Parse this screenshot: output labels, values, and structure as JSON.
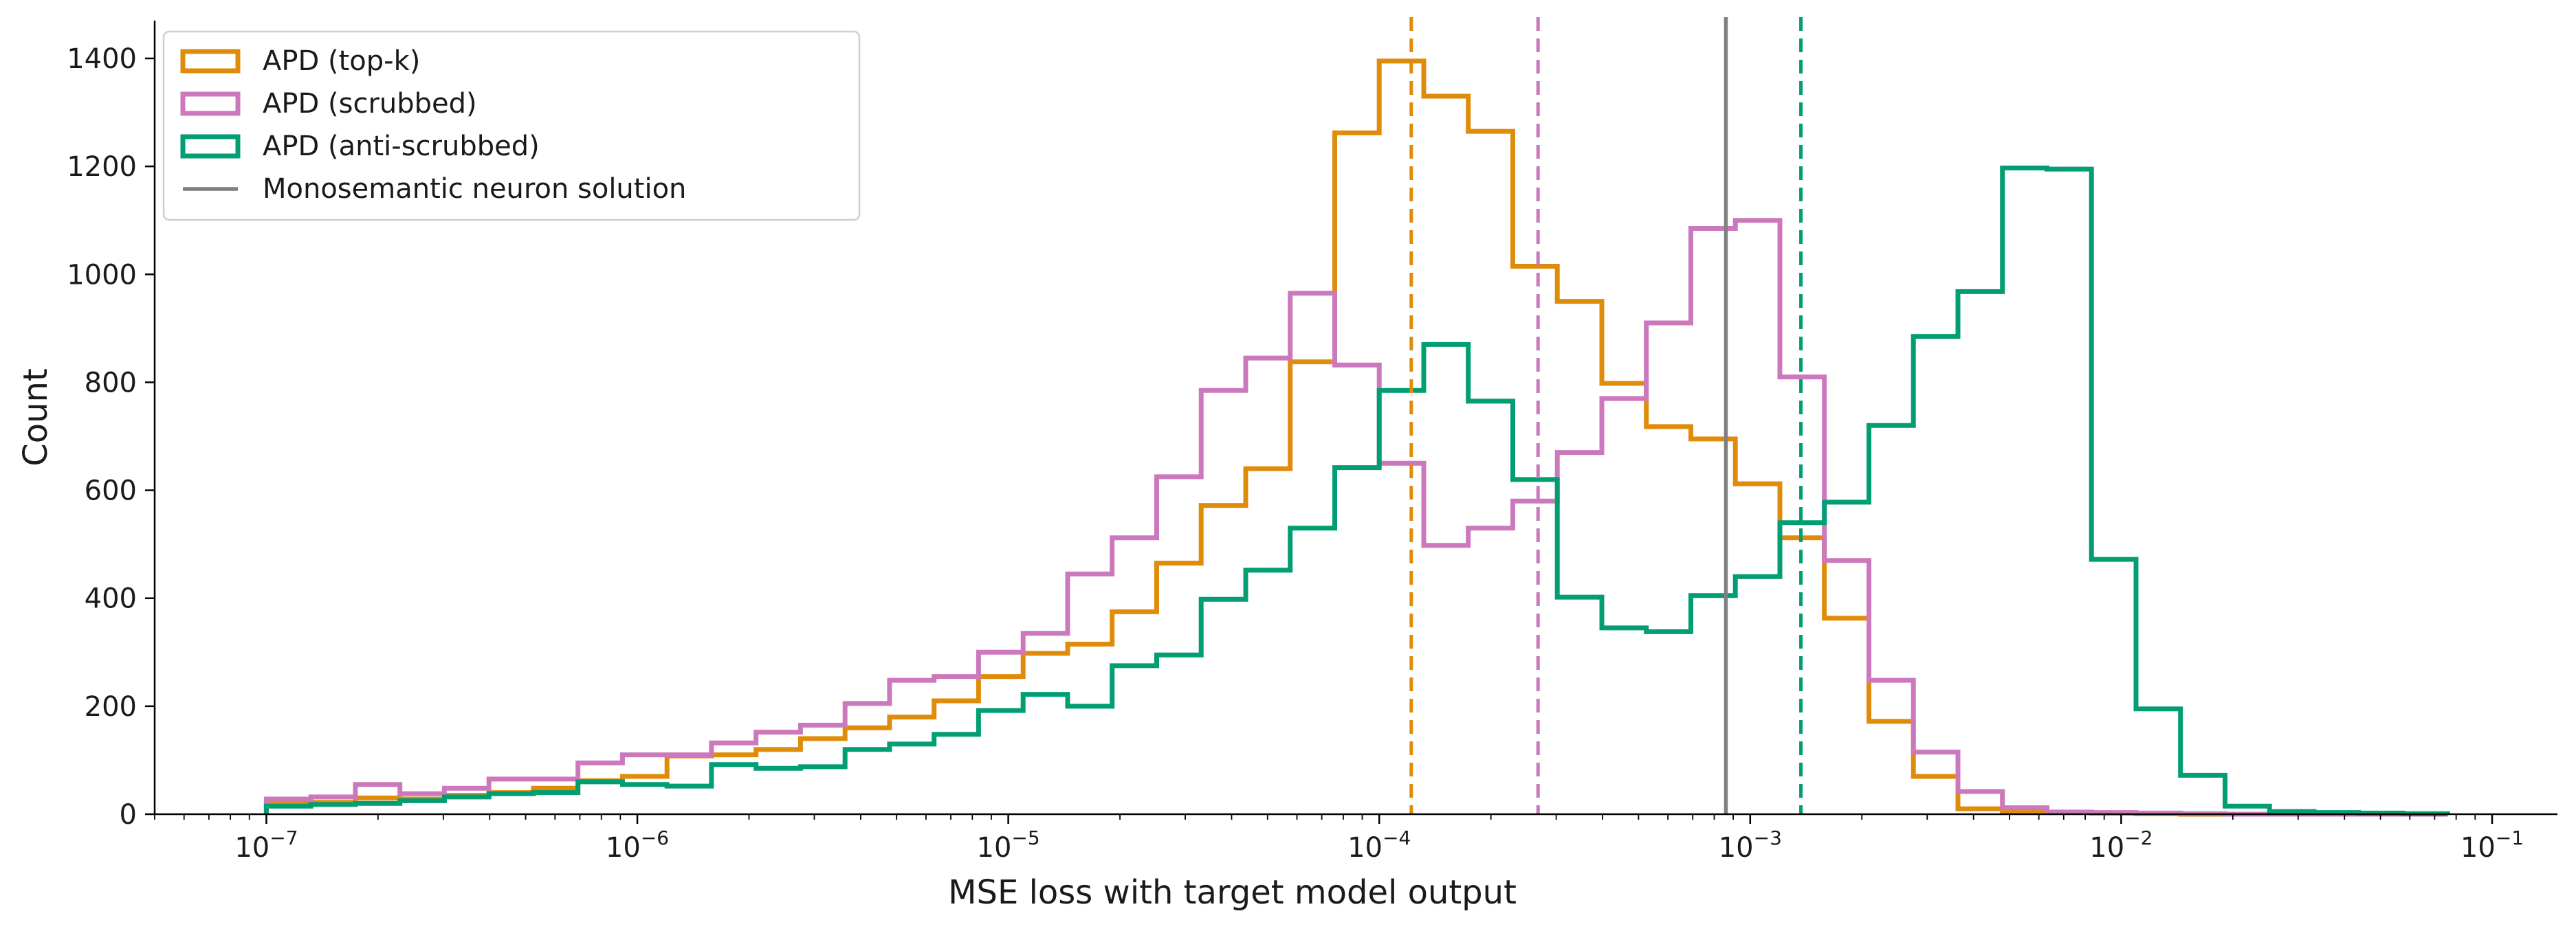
{
  "chart_data": {
    "type": "histogram",
    "xlabel": "MSE loss with target model output",
    "ylabel": "Count",
    "xscale": "log",
    "xlim": [
      5e-08,
      0.15
    ],
    "ylim": [
      0,
      1470
    ],
    "yticks": [
      0,
      200,
      400,
      600,
      800,
      1000,
      1200,
      1400
    ],
    "xticks": [
      {
        "value": 1e-07,
        "base": "10",
        "exp": "−7"
      },
      {
        "value": 1e-06,
        "base": "10",
        "exp": "−6"
      },
      {
        "value": 1e-05,
        "base": "10",
        "exp": "−5"
      },
      {
        "value": 0.0001,
        "base": "10",
        "exp": "−4"
      },
      {
        "value": 0.001,
        "base": "10",
        "exp": "−3"
      },
      {
        "value": 0.01,
        "base": "10",
        "exp": "−2"
      },
      {
        "value": 0.1,
        "base": "10",
        "exp": "−1"
      }
    ],
    "grid": false,
    "legend_position": "top-left",
    "bin_edges_log10": [
      -7.0,
      -6.88,
      -6.76,
      -6.64,
      -6.52,
      -6.4,
      -6.28,
      -6.16,
      -6.04,
      -5.92,
      -5.8,
      -5.68,
      -5.56,
      -5.44,
      -5.32,
      -5.2,
      -5.08,
      -4.96,
      -4.84,
      -4.72,
      -4.6,
      -4.48,
      -4.36,
      -4.24,
      -4.12,
      -4.0,
      -3.88,
      -3.76,
      -3.64,
      -3.52,
      -3.4,
      -3.28,
      -3.16,
      -3.04,
      -2.92,
      -2.8,
      -2.68,
      -2.56,
      -2.44,
      -2.32,
      -2.2,
      -2.08,
      -1.96,
      -1.84,
      -1.72,
      -1.6,
      -1.48,
      -1.36,
      -1.24,
      -1.12
    ],
    "series": [
      {
        "name": "APD (top-k)",
        "color": "#e08c0b",
        "legend_marker": "box",
        "values": [
          20,
          22,
          30,
          28,
          35,
          40,
          48,
          62,
          70,
          108,
          110,
          120,
          140,
          160,
          180,
          210,
          255,
          298,
          315,
          375,
          465,
          572,
          640,
          838,
          1262,
          1395,
          1330,
          1265,
          1015,
          950,
          798,
          718,
          695,
          612,
          512,
          363,
          172,
          70,
          10,
          4,
          3,
          2,
          1,
          0,
          0,
          0,
          0,
          0,
          0
        ]
      },
      {
        "name": "APD (scrubbed)",
        "color": "#cc78bc",
        "legend_marker": "box",
        "values": [
          28,
          32,
          55,
          38,
          48,
          65,
          65,
          95,
          110,
          110,
          132,
          152,
          165,
          205,
          248,
          255,
          300,
          335,
          445,
          512,
          625,
          785,
          845,
          965,
          832,
          650,
          498,
          530,
          580,
          670,
          770,
          910,
          1085,
          1100,
          810,
          470,
          248,
          115,
          42,
          12,
          4,
          3,
          2,
          1,
          0,
          0,
          0,
          0,
          0
        ]
      },
      {
        "name": "APD (anti-scrubbed)",
        "color": "#029e73",
        "legend_marker": "box",
        "values": [
          15,
          18,
          20,
          25,
          32,
          38,
          40,
          60,
          55,
          52,
          92,
          85,
          88,
          120,
          130,
          148,
          192,
          222,
          200,
          275,
          295,
          398,
          452,
          530,
          642,
          785,
          870,
          765,
          620,
          402,
          345,
          338,
          405,
          440,
          540,
          578,
          720,
          885,
          968,
          1197,
          1195,
          472,
          195,
          72,
          15,
          5,
          3,
          2,
          1
        ]
      }
    ],
    "vlines": [
      {
        "name": "APD (top-k) mean",
        "x": 0.000122,
        "color": "#e08c0b",
        "style": "dashed"
      },
      {
        "name": "APD (scrubbed) mean",
        "x": 0.000268,
        "color": "#cc78bc",
        "style": "dashed"
      },
      {
        "name": "Monosemantic neuron solution",
        "x": 0.00086,
        "color": "#808080",
        "style": "solid",
        "legend": true
      },
      {
        "name": "APD (anti-scrubbed) mean",
        "x": 0.00137,
        "color": "#029e73",
        "style": "dashed"
      }
    ],
    "legend": [
      {
        "label": "APD (top-k)",
        "color": "#e08c0b",
        "marker": "box"
      },
      {
        "label": "APD (scrubbed)",
        "color": "#cc78bc",
        "marker": "box"
      },
      {
        "label": "APD (anti-scrubbed)",
        "color": "#029e73",
        "marker": "box"
      },
      {
        "label": "Monosemantic neuron solution",
        "color": "#808080",
        "marker": "line"
      }
    ]
  }
}
